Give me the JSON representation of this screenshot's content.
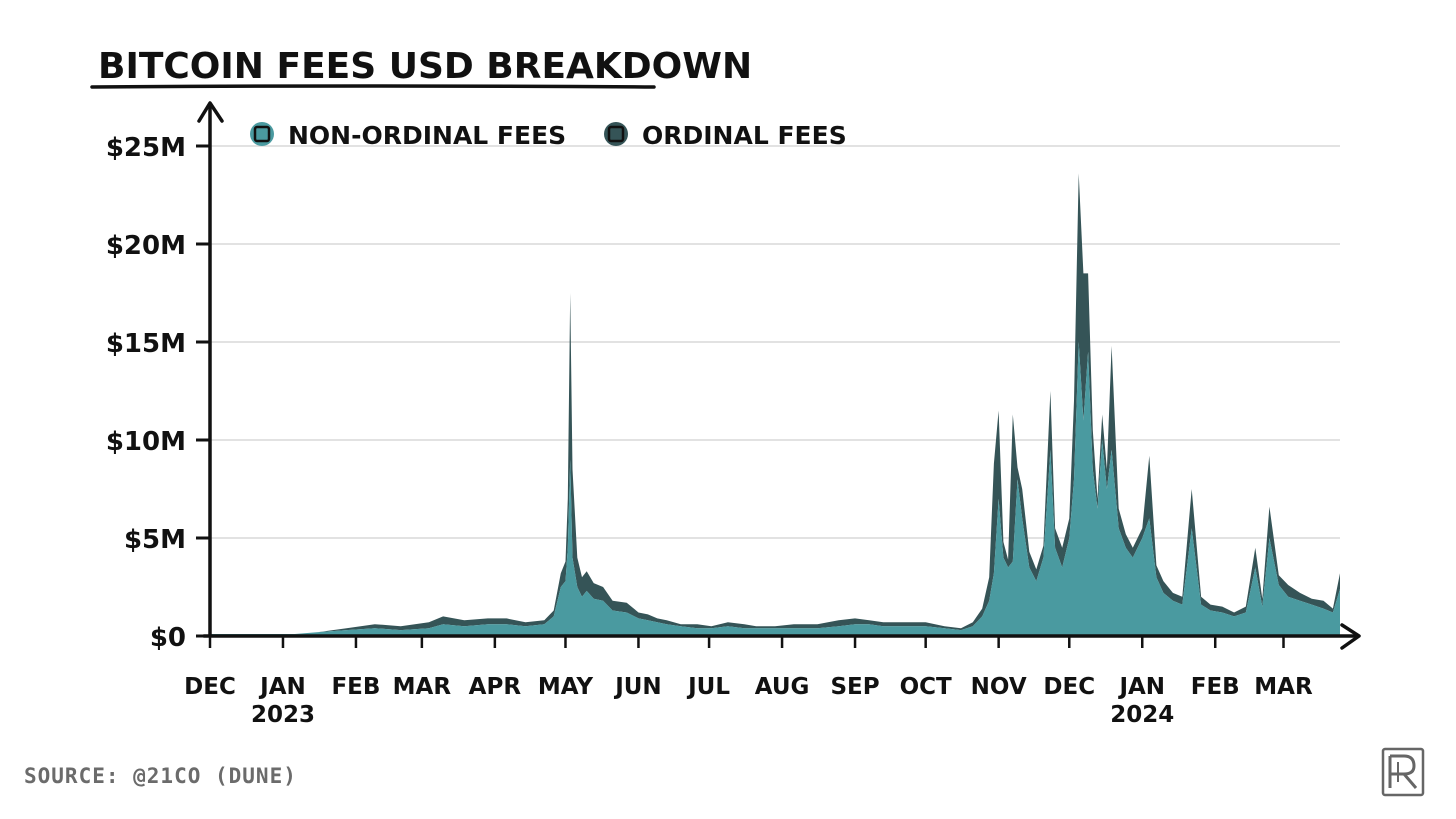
{
  "chart_data": {
    "type": "area",
    "title": "BITCOIN FEES USD BREAKDOWN",
    "ylabel": "",
    "xlabel": "",
    "stacked": true,
    "ylim": [
      0,
      25
    ],
    "yunit": "USD millions",
    "y_ticks": [
      {
        "value": 0,
        "label": "$0"
      },
      {
        "value": 5,
        "label": "$5M"
      },
      {
        "value": 10,
        "label": "$10M"
      },
      {
        "value": 15,
        "label": "$15M"
      },
      {
        "value": 20,
        "label": "$20M"
      },
      {
        "value": 25,
        "label": "$25M"
      }
    ],
    "x_ticks": [
      {
        "label": "DEC",
        "sub": "",
        "date": "2022-12-01"
      },
      {
        "label": "JAN",
        "sub": "2023",
        "date": "2023-01-01"
      },
      {
        "label": "FEB",
        "sub": "",
        "date": "2023-02-01"
      },
      {
        "label": "MAR",
        "sub": "",
        "date": "2023-03-01"
      },
      {
        "label": "APR",
        "sub": "",
        "date": "2023-04-01"
      },
      {
        "label": "MAY",
        "sub": "",
        "date": "2023-05-01"
      },
      {
        "label": "JUN",
        "sub": "",
        "date": "2023-06-01"
      },
      {
        "label": "JUL",
        "sub": "",
        "date": "2023-07-01"
      },
      {
        "label": "AUG",
        "sub": "",
        "date": "2023-08-01"
      },
      {
        "label": "SEP",
        "sub": "",
        "date": "2023-09-01"
      },
      {
        "label": "OCT",
        "sub": "",
        "date": "2023-10-01"
      },
      {
        "label": "NOV",
        "sub": "",
        "date": "2023-11-01"
      },
      {
        "label": "DEC",
        "sub": "",
        "date": "2023-12-01"
      },
      {
        "label": "JAN",
        "sub": "2024",
        "date": "2024-01-01"
      },
      {
        "label": "FEB",
        "sub": "",
        "date": "2024-02-01"
      },
      {
        "label": "MAR",
        "sub": "",
        "date": "2024-03-01"
      }
    ],
    "x": [
      "2022-12-01",
      "2022-12-12",
      "2022-12-24",
      "2023-01-06",
      "2023-01-16",
      "2023-01-28",
      "2023-02-09",
      "2023-02-20",
      "2023-03-04",
      "2023-03-10",
      "2023-03-19",
      "2023-03-29",
      "2023-04-06",
      "2023-04-14",
      "2023-04-22",
      "2023-04-26",
      "2023-04-29",
      "2023-05-01",
      "2023-05-02",
      "2023-05-03",
      "2023-05-04",
      "2023-05-06",
      "2023-05-08",
      "2023-05-10",
      "2023-05-13",
      "2023-05-17",
      "2023-05-21",
      "2023-05-27",
      "2023-06-01",
      "2023-06-05",
      "2023-06-09",
      "2023-06-13",
      "2023-06-19",
      "2023-06-26",
      "2023-07-02",
      "2023-07-09",
      "2023-07-16",
      "2023-07-21",
      "2023-07-29",
      "2023-08-06",
      "2023-08-16",
      "2023-08-25",
      "2023-09-01",
      "2023-09-07",
      "2023-09-13",
      "2023-09-21",
      "2023-10-01",
      "2023-10-09",
      "2023-10-16",
      "2023-10-21",
      "2023-10-25",
      "2023-10-28",
      "2023-10-30",
      "2023-11-01",
      "2023-11-03",
      "2023-11-05",
      "2023-11-07",
      "2023-11-09",
      "2023-11-11",
      "2023-11-14",
      "2023-11-17",
      "2023-11-20",
      "2023-11-23",
      "2023-11-25",
      "2023-11-28",
      "2023-12-01",
      "2023-12-03",
      "2023-12-05",
      "2023-12-07",
      "2023-12-09",
      "2023-12-11",
      "2023-12-13",
      "2023-12-15",
      "2023-12-17",
      "2023-12-19",
      "2023-12-22",
      "2023-12-25",
      "2023-12-28",
      "2024-01-01",
      "2024-01-04",
      "2024-01-07",
      "2024-01-10",
      "2024-01-14",
      "2024-01-18",
      "2024-01-22",
      "2024-01-26",
      "2024-01-30",
      "2024-02-04",
      "2024-02-09",
      "2024-02-14",
      "2024-02-18",
      "2024-02-21",
      "2024-02-24",
      "2024-02-28",
      "2024-03-03",
      "2024-03-08",
      "2024-03-13",
      "2024-03-18",
      "2024-03-22",
      "2024-03-25"
    ],
    "series": [
      {
        "name": "NON-ORDINAL FEES",
        "color": "#4a9aa0",
        "values": [
          0.1,
          0.1,
          0.1,
          0.1,
          0.2,
          0.3,
          0.4,
          0.3,
          0.4,
          0.6,
          0.5,
          0.6,
          0.6,
          0.5,
          0.6,
          1.0,
          2.5,
          2.8,
          4.5,
          9.0,
          4.0,
          2.5,
          2.0,
          2.3,
          1.9,
          1.8,
          1.3,
          1.2,
          0.9,
          0.8,
          0.7,
          0.6,
          0.5,
          0.4,
          0.4,
          0.5,
          0.4,
          0.4,
          0.4,
          0.4,
          0.4,
          0.5,
          0.6,
          0.6,
          0.5,
          0.5,
          0.5,
          0.4,
          0.3,
          0.5,
          1.0,
          1.8,
          3.2,
          7.0,
          4.0,
          3.5,
          3.8,
          8.0,
          6.0,
          3.5,
          2.8,
          4.0,
          9.5,
          4.5,
          3.5,
          5.0,
          8.0,
          15.0,
          11.0,
          14.5,
          8.5,
          6.5,
          10.0,
          7.5,
          9.5,
          5.5,
          4.5,
          4.0,
          5.0,
          6.0,
          3.0,
          2.2,
          1.8,
          1.6,
          5.5,
          1.6,
          1.3,
          1.2,
          1.0,
          1.2,
          3.5,
          1.5,
          5.0,
          2.6,
          2.0,
          1.8,
          1.6,
          1.4,
          1.2,
          2.4
        ]
      },
      {
        "name": "ORDINAL FEES",
        "color": "#355457",
        "values": [
          0.0,
          0.0,
          0.0,
          0.0,
          0.0,
          0.1,
          0.2,
          0.2,
          0.3,
          0.4,
          0.3,
          0.3,
          0.3,
          0.2,
          0.2,
          0.3,
          0.7,
          1.0,
          2.5,
          8.5,
          4.5,
          1.5,
          1.0,
          1.0,
          0.8,
          0.7,
          0.5,
          0.5,
          0.3,
          0.3,
          0.2,
          0.2,
          0.1,
          0.2,
          0.1,
          0.2,
          0.2,
          0.1,
          0.1,
          0.2,
          0.2,
          0.3,
          0.3,
          0.2,
          0.2,
          0.2,
          0.2,
          0.1,
          0.1,
          0.2,
          0.4,
          1.2,
          5.6,
          4.5,
          0.8,
          0.4,
          7.5,
          0.6,
          1.5,
          0.8,
          0.6,
          0.6,
          3.0,
          1.0,
          1.0,
          1.0,
          4.0,
          8.6,
          7.5,
          4.0,
          2.0,
          0.5,
          1.3,
          1.0,
          5.3,
          1.0,
          0.7,
          0.5,
          0.5,
          3.2,
          0.6,
          0.6,
          0.4,
          0.4,
          2.0,
          0.4,
          0.3,
          0.3,
          0.2,
          0.3,
          1.0,
          0.4,
          1.6,
          0.5,
          0.6,
          0.4,
          0.3,
          0.4,
          0.2,
          0.8
        ]
      }
    ],
    "legend": "top-left"
  },
  "source": "SOURCE: @21CO (DUNE)",
  "logo_icon": "publisher-monogram-icon"
}
